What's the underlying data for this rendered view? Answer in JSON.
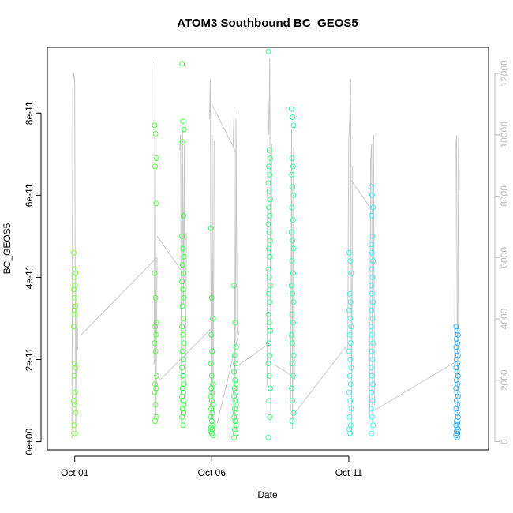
{
  "chart_data": {
    "type": "scatter",
    "title": "ATOM3 Southbound BC_GEOS5",
    "xlabel": "Date",
    "ylabel": "BC_GEOS5",
    "x_ticks": [
      "Oct 01",
      "Oct 06",
      "Oct 11"
    ],
    "x_tick_days": [
      1,
      6,
      11
    ],
    "xlim": [
      0.0,
      16.1
    ],
    "ylim": [
      -2e-12,
      9.6e-11
    ],
    "y_ticks": [
      "0e+00",
      "2e-11",
      "4e-11",
      "6e-11",
      "8e-11"
    ],
    "y_tick_values": [
      0,
      2e-11,
      4e-11,
      6e-11,
      8e-11
    ],
    "y2_ticks": [
      "0",
      "2000",
      "4000",
      "6000",
      "8000",
      "10000",
      "12000"
    ],
    "y2_tick_values": [
      0,
      2000,
      4000,
      6000,
      8000,
      10000,
      12000
    ],
    "y2lim": [
      -270,
      12850
    ],
    "point_series": [
      {
        "color": "#80ff3c",
        "x": 1.0,
        "values": [
          4.6e-11,
          4.2e-11,
          4.1e-11,
          4e-11,
          3.8e-11,
          3.7e-11,
          3.5e-11,
          3.3e-11,
          3.2e-11,
          3.1e-11,
          2.8e-11,
          1.9e-11,
          1.8e-11,
          1.6e-11,
          1.2e-11,
          1e-11,
          9e-12,
          7e-12,
          4e-12,
          2e-12
        ]
      },
      {
        "color": "#55ff3c",
        "x": 3.95,
        "values": [
          7.7e-11,
          7.5e-11,
          6.9e-11,
          6.7e-11,
          5.8e-11,
          4.1e-11,
          3.5e-11,
          2.9e-11,
          2.8e-11,
          2.6e-11,
          2.4e-11,
          2.2e-11,
          1.6e-11,
          1.4e-11,
          1.3e-11,
          1.2e-11,
          9e-12,
          6e-12,
          5e-12
        ]
      },
      {
        "color": "#3cff3c",
        "x": 4.95,
        "values": [
          9.2e-11,
          7.8e-11,
          7.6e-11,
          7.3e-11,
          5.5e-11,
          5e-11,
          4.7e-11,
          4.5e-11,
          4.3e-11,
          4.1e-11,
          3.9e-11,
          3.7e-11,
          3.5e-11,
          3.3e-11,
          3e-11,
          2.8e-11,
          2.6e-11,
          2.4e-11,
          2.2e-11,
          2e-11,
          1.8e-11,
          1.6e-11,
          1.4e-11,
          1.3e-11,
          1.2e-11,
          1.1e-11,
          1e-11,
          9e-12,
          8e-12,
          7e-12,
          6e-12,
          4e-12
        ]
      },
      {
        "color": "#3cff50",
        "x": 6.0,
        "values": [
          5.2e-11,
          3.5e-11,
          3e-11,
          2.6e-11,
          2.2e-11,
          1.9e-11,
          1.6e-11,
          1.4e-11,
          1.3e-11,
          1.2e-11,
          1.1e-11,
          1e-11,
          9e-12,
          8e-12,
          7e-12,
          6e-12,
          5e-12,
          4e-12,
          3.5e-12,
          3e-12,
          2.5e-12,
          2e-12,
          1.5e-12
        ]
      },
      {
        "color": "#3cff64",
        "x": 6.85,
        "values": [
          3.8e-11,
          2.9e-11,
          2.3e-11,
          2.1e-11,
          1.9e-11,
          1.7e-11,
          1.5e-11,
          1.4e-11,
          1.3e-11,
          1.2e-11,
          1.1e-11,
          1e-11,
          9e-12,
          8e-12,
          7e-12,
          6e-12,
          5e-12,
          4e-12,
          3e-12,
          2e-12,
          1e-12
        ]
      },
      {
        "color": "#3cff8c",
        "x": 8.1,
        "values": [
          9.5e-11,
          7.1e-11,
          6.9e-11,
          6.7e-11,
          6.5e-11,
          6.3e-11,
          6.1e-11,
          5.9e-11,
          5.7e-11,
          5.5e-11,
          5.3e-11,
          5.1e-11,
          4.9e-11,
          4.7e-11,
          4.5e-11,
          4.2e-11,
          4e-11,
          3.8e-11,
          3.6e-11,
          3.4e-11,
          3.1e-11,
          2.9e-11,
          2.7e-11,
          2.4e-11,
          2.1e-11,
          1.9e-11,
          1.6e-11,
          1.3e-11,
          1e-11,
          6e-12,
          1e-12
        ]
      },
      {
        "color": "#3cffa0",
        "x": 8.95,
        "values": [
          8.1e-11,
          7.9e-11,
          7.7e-11,
          6.9e-11,
          6.7e-11,
          6.5e-11,
          6.2e-11,
          6e-11,
          5.7e-11,
          5.4e-11,
          5.1e-11,
          4.9e-11,
          4.7e-11,
          4.4e-11,
          4.1e-11,
          3.8e-11,
          3.6e-11,
          3.4e-11,
          3.1e-11,
          2.9e-11,
          2.6e-11,
          2.4e-11,
          2.1e-11,
          1.9e-11,
          1.6e-11,
          1.3e-11,
          1e-11,
          7e-12,
          5e-12
        ]
      },
      {
        "color": "#3cffe6",
        "x": 11.05,
        "values": [
          4.6e-11,
          4.4e-11,
          4.1e-11,
          3.6e-11,
          3.4e-11,
          3.2e-11,
          3e-11,
          2.8e-11,
          2.6e-11,
          2.4e-11,
          2.2e-11,
          2e-11,
          1.8e-11,
          1.6e-11,
          1.4e-11,
          1.2e-11,
          1e-11,
          8e-12,
          6e-12,
          4e-12,
          3e-12,
          2e-12
        ]
      },
      {
        "color": "#3cf0ff",
        "x": 11.85,
        "values": [
          6.2e-11,
          6e-11,
          5.7e-11,
          5.5e-11,
          5e-11,
          4.8e-11,
          4.6e-11,
          4.4e-11,
          4.2e-11,
          4e-11,
          3.8e-11,
          3.6e-11,
          3.4e-11,
          3.2e-11,
          3e-11,
          2.8e-11,
          2.6e-11,
          2.4e-11,
          2.2e-11,
          2e-11,
          1.8e-11,
          1.6e-11,
          1.4e-11,
          1.2e-11,
          1e-11,
          8e-12,
          6e-12,
          4e-12,
          2e-12
        ]
      },
      {
        "color": "#3cb4ff",
        "x": 14.95,
        "values": [
          2.8e-11,
          2.7e-11,
          2.6e-11,
          2.5e-11,
          2.4e-11,
          2.3e-11,
          2.2e-11,
          2.1e-11,
          2e-11,
          1.9e-11,
          1.8e-11,
          1.7e-11,
          1.6e-11,
          1.5e-11,
          1.4e-11,
          1.3e-11,
          1.2e-11,
          1.1e-11,
          1e-11,
          9e-12,
          8e-12,
          7e-12,
          6e-12,
          5e-12,
          4.5e-12,
          4e-12,
          3.5e-12,
          3e-12,
          2.5e-12,
          2e-12,
          1.5e-12,
          1e-12
        ]
      }
    ],
    "altitude_line": {
      "color": "#c8c8c8",
      "segments": [
        {
          "x": 1.0,
          "values": [
            100,
            11500,
            12000,
            11800,
            200,
            5500,
            3000
          ]
        },
        {
          "x": 3.95,
          "values": [
            2500,
            12400,
            800,
            6000
          ]
        },
        {
          "x": 4.95,
          "values": [
            9500,
            10000,
            600,
            10200,
            4500,
            9800,
            700,
            6800
          ]
        },
        {
          "x": 6.0,
          "values": [
            10500,
            11800,
            500,
            10000,
            800,
            9800
          ]
        },
        {
          "x": 6.85,
          "values": [
            9600,
            10800,
            400,
            10500,
            3500
          ]
        },
        {
          "x": 8.1,
          "values": [
            1800,
            11300,
            10000,
            12500,
            600,
            9700
          ]
        },
        {
          "x": 8.95,
          "values": [
            1000,
            10200,
            400,
            9600,
            2000
          ]
        },
        {
          "x": 11.05,
          "values": [
            3000,
            9800,
            10500,
            11800,
            200,
            9000
          ]
        },
        {
          "x": 11.85,
          "values": [
            800,
            9200,
            9700,
            600,
            10000,
            1200
          ]
        },
        {
          "x": 14.95,
          "values": [
            2500,
            9500,
            10000,
            400,
            9900,
            8200
          ]
        }
      ],
      "connectors": [
        [
          1.2,
          3450,
          4.0,
          6000
        ],
        [
          4.0,
          6700,
          4.95,
          5500
        ],
        [
          4.1,
          2000,
          6.0,
          3700
        ],
        [
          6.0,
          11000,
          6.9,
          9400
        ],
        [
          6.2,
          600,
          7.0,
          3600
        ],
        [
          7.0,
          2500,
          8.1,
          3200
        ],
        [
          8.3,
          2500,
          9.0,
          2100
        ],
        [
          9.0,
          900,
          10.9,
          3100
        ],
        [
          11.1,
          8500,
          11.8,
          7600
        ],
        [
          11.9,
          1000,
          14.9,
          2600
        ]
      ]
    },
    "grid": false,
    "legend": "none"
  }
}
